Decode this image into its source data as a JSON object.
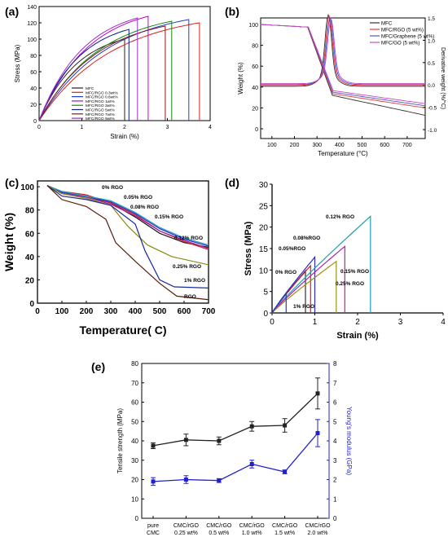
{
  "panel_labels": {
    "a": "(a)",
    "b": "(b)",
    "c": "(c)",
    "d": "(d)",
    "e": "(e)"
  },
  "chart_data": [
    {
      "id": "a",
      "type": "line",
      "xlabel": "Strain (%)",
      "ylabel": "Stress (MPa)",
      "xlim": [
        0,
        4
      ],
      "ylim": [
        0,
        140
      ],
      "xticks": [
        0,
        1,
        2,
        3,
        4
      ],
      "yticks": [
        0,
        20,
        40,
        60,
        80,
        100,
        120,
        140
      ],
      "legend_position": "lower-right",
      "series": [
        {
          "name": "MFC",
          "color": "#222222",
          "break_x": 2.0,
          "max_y": 100
        },
        {
          "name": "MFC/RGO 0.3wt%",
          "color": "#e0201b",
          "break_x": 3.75,
          "max_y": 120
        },
        {
          "name": "MFC/RGO 0.6wt%",
          "color": "#1f3fd1",
          "break_x": 3.5,
          "max_y": 124
        },
        {
          "name": "MFC/RGO 1wt%",
          "color": "#c400c4",
          "break_x": 2.55,
          "max_y": 128
        },
        {
          "name": "MFC/RGO 3wt%",
          "color": "#138a13",
          "break_x": 3.1,
          "max_y": 122
        },
        {
          "name": "MFC/RGO 5wt%",
          "color": "#0b1f8f",
          "break_x": 2.1,
          "max_y": 112
        },
        {
          "name": "MFC/RGO 7wt%",
          "color": "#8b1a1a",
          "break_x": 2.95,
          "max_y": 116
        },
        {
          "name": "MFC/RGO 9wt%",
          "color": "#9a2fcf",
          "break_x": 2.3,
          "max_y": 126
        }
      ]
    },
    {
      "id": "b",
      "type": "line",
      "xlabel": "Temperature (°C)",
      "ylabel": "Weight (%)",
      "y2label": "Derivative weight (%/°C)",
      "xlim": [
        50,
        780
      ],
      "ylim": [
        0,
        100
      ],
      "y2lim": [
        -1.2,
        1.5
      ],
      "xticks": [
        100,
        200,
        300,
        400,
        500,
        600,
        700
      ],
      "yticks": [
        0,
        20,
        40,
        60,
        80,
        100
      ],
      "y2ticks": [
        -1.0,
        -0.5,
        0.0,
        0.5,
        1.0,
        1.5
      ],
      "y2ticklabels": [
        "-1.0",
        "-0.5",
        "0.0",
        "0.5",
        "1.0",
        "1.5"
      ],
      "legend_position": "top-right",
      "series": [
        {
          "name": "MFC",
          "color": "#333333",
          "residue": 13
        },
        {
          "name": "MFC/RGO (5 wt%)",
          "color": "#e23b3b",
          "residue": 20
        },
        {
          "name": "MFC/Graphene (5 wt%)",
          "color": "#4a55d6",
          "residue": 22
        },
        {
          "name": "MFC/GO (5 wt%)",
          "color": "#c64ac6",
          "residue": 24
        }
      ]
    },
    {
      "id": "c",
      "type": "line",
      "xlabel": "Temperature( C)",
      "ylabel": "Weight (%)",
      "xlim": [
        0,
        700
      ],
      "ylim": [
        0,
        105
      ],
      "xticks": [
        0,
        100,
        200,
        300,
        400,
        500,
        600,
        700
      ],
      "yticks": [
        0,
        20,
        40,
        60,
        80,
        100
      ],
      "series": [
        {
          "name": "0% RGO",
          "color": "#1a1a1a",
          "points": [
            [
              40,
              101
            ],
            [
              100,
              95
            ],
            [
              200,
              92
            ],
            [
              300,
              86
            ],
            [
              400,
              74
            ],
            [
              500,
              60
            ],
            [
              600,
              52
            ],
            [
              700,
              48
            ]
          ]
        },
        {
          "name": "0.05% RGO",
          "color": "#d42020",
          "points": [
            [
              40,
              101
            ],
            [
              100,
              96
            ],
            [
              200,
              93
            ],
            [
              300,
              86
            ],
            [
              400,
              76
            ],
            [
              500,
              62
            ],
            [
              600,
              53
            ],
            [
              700,
              46
            ]
          ]
        },
        {
          "name": "0.08% RGO",
          "color": "#2a2acc",
          "points": [
            [
              40,
              101
            ],
            [
              100,
              95
            ],
            [
              200,
              92
            ],
            [
              300,
              87
            ],
            [
              400,
              77
            ],
            [
              500,
              64
            ],
            [
              600,
              55
            ],
            [
              700,
              49
            ]
          ]
        },
        {
          "name": "0.15% RGO",
          "color": "#a020a0",
          "points": [
            [
              40,
              101
            ],
            [
              100,
              94
            ],
            [
              200,
              91
            ],
            [
              300,
              85
            ],
            [
              400,
              75
            ],
            [
              500,
              62
            ],
            [
              600,
              54
            ],
            [
              700,
              47
            ]
          ]
        },
        {
          "name": "0.12% RGO",
          "color": "#20a0c0",
          "points": [
            [
              40,
              101
            ],
            [
              100,
              96
            ],
            [
              200,
              92
            ],
            [
              300,
              88
            ],
            [
              400,
              78
            ],
            [
              500,
              65
            ],
            [
              600,
              56
            ],
            [
              700,
              50
            ]
          ]
        },
        {
          "name": "0.25% RGO",
          "color": "#8a8a10",
          "points": [
            [
              40,
              101
            ],
            [
              100,
              94
            ],
            [
              200,
              90
            ],
            [
              300,
              84
            ],
            [
              370,
              66
            ],
            [
              450,
              50
            ],
            [
              550,
              40
            ],
            [
              700,
              33
            ]
          ]
        },
        {
          "name": "1% RGO",
          "color": "#1a2a9a",
          "points": [
            [
              40,
              101
            ],
            [
              100,
              92
            ],
            [
              200,
              89
            ],
            [
              300,
              84
            ],
            [
              400,
              68
            ],
            [
              440,
              45
            ],
            [
              500,
              20
            ],
            [
              560,
              14
            ],
            [
              700,
              13
            ]
          ]
        },
        {
          "name": "RGO",
          "color": "#5a1a0a",
          "points": [
            [
              40,
              101
            ],
            [
              100,
              89
            ],
            [
              200,
              83
            ],
            [
              280,
              72
            ],
            [
              320,
              52
            ],
            [
              400,
              36
            ],
            [
              500,
              17
            ],
            [
              570,
              6
            ],
            [
              700,
              3
            ]
          ]
        }
      ]
    },
    {
      "id": "d",
      "type": "line",
      "xlabel": "Strain (%)",
      "ylabel": "Stress (MPa)",
      "xlim": [
        0,
        4
      ],
      "ylim": [
        0,
        30
      ],
      "xticks": [
        0,
        1,
        2,
        3,
        4
      ],
      "yticks": [
        0,
        5,
        10,
        15,
        20,
        25,
        30
      ],
      "series": [
        {
          "name": "0% RGO",
          "color": "#303030",
          "break_x": 0.78,
          "max_y": 9.8
        },
        {
          "name": "0.05%RGO",
          "color": "#d42020",
          "break_x": 0.9,
          "max_y": 11.0
        },
        {
          "name": "0.08%RGO",
          "color": "#2a2acc",
          "break_x": 1.0,
          "max_y": 13.0
        },
        {
          "name": "0.12% RGO",
          "color": "#20a0b0",
          "break_x": 2.3,
          "max_y": 22.5
        },
        {
          "name": "0.15% RGO",
          "color": "#b020b0",
          "break_x": 1.7,
          "max_y": 15.5
        },
        {
          "name": "0.25% RGO",
          "color": "#a09010",
          "break_x": 1.5,
          "max_y": 12.0
        },
        {
          "name": "1% RGO",
          "color": "#2040c0",
          "break_x": 0.33,
          "max_y": 4.5
        }
      ]
    },
    {
      "id": "e",
      "type": "line",
      "categories": [
        "pure CMC",
        "CMC/rGO 0.25 wt%",
        "CMC/rGO 0.5 wt%",
        "CMC/rGO 1.0 wt%",
        "CMC/rGO 1.5 wt%",
        "CMC/rGO 2.0 wt%"
      ],
      "ylabel": "Tensile strength (MPa)",
      "y2label": "Young's modulus (GPa)",
      "ylim": [
        0,
        80
      ],
      "y2lim": [
        0,
        8
      ],
      "yticks": [
        0,
        10,
        20,
        30,
        40,
        50,
        60,
        70,
        80
      ],
      "y2ticks": [
        0,
        1,
        2,
        3,
        4,
        5,
        6,
        7,
        8
      ],
      "series": [
        {
          "name": "Tensile strength",
          "axis": "left",
          "color": "#222222",
          "values": [
            37.5,
            40.5,
            40.0,
            47.5,
            48.0,
            64.5
          ],
          "errors": [
            1.5,
            3.0,
            2.0,
            2.5,
            3.5,
            8.0
          ]
        },
        {
          "name": "Young's modulus",
          "axis": "right",
          "color": "#2020d0",
          "values": [
            1.9,
            2.0,
            1.95,
            2.8,
            2.4,
            4.4
          ],
          "errors": [
            0.2,
            0.2,
            0.1,
            0.2,
            0.1,
            0.7
          ]
        }
      ]
    }
  ]
}
